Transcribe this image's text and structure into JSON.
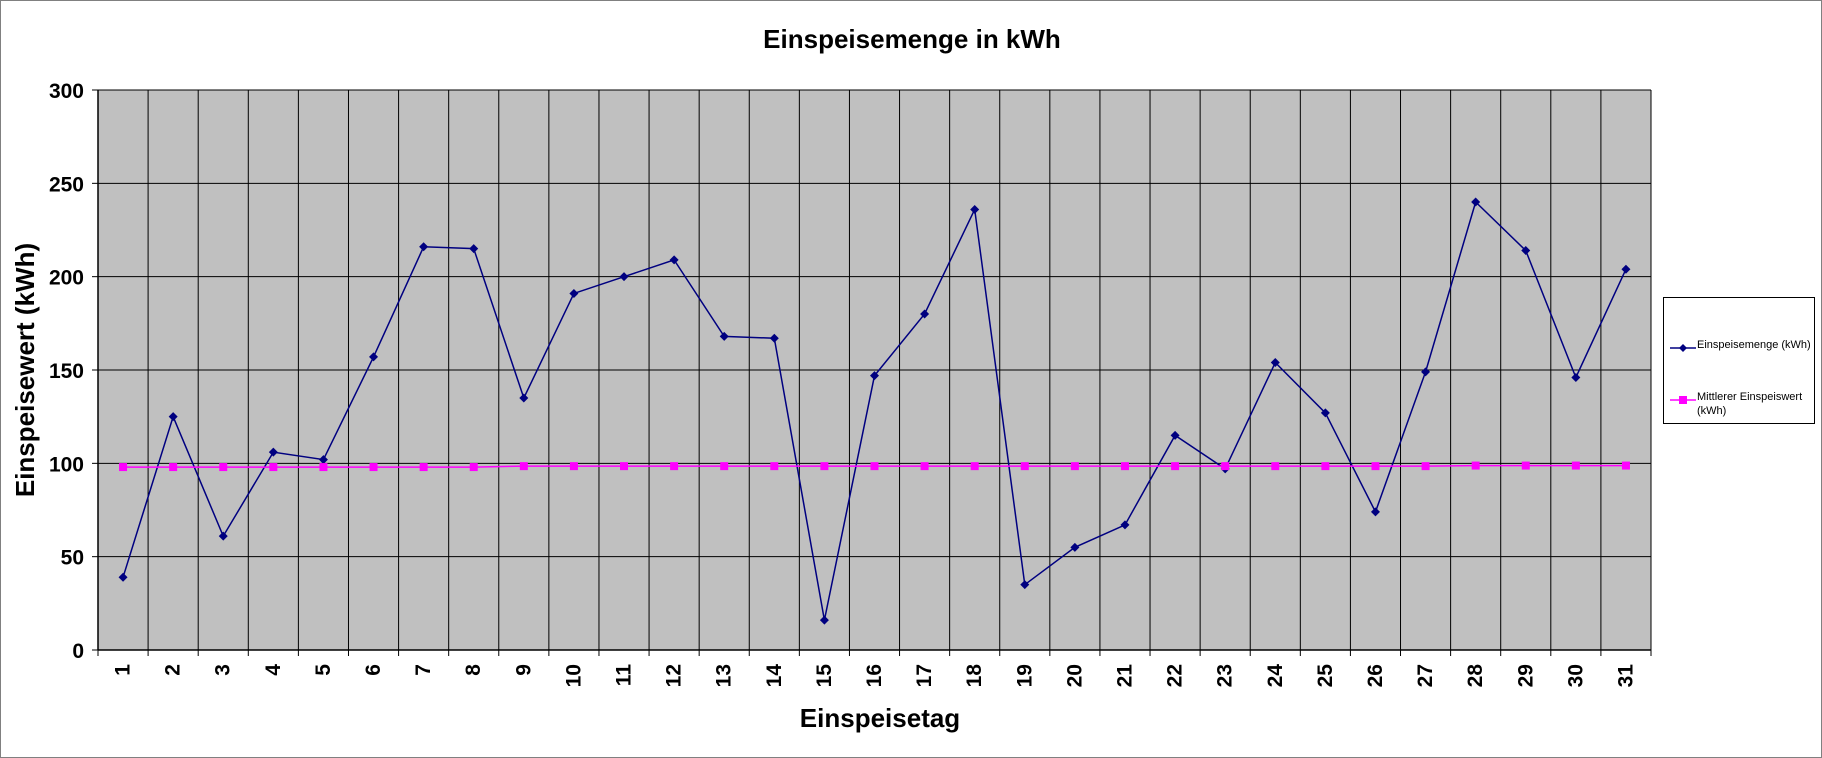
{
  "chart_data": {
    "type": "line",
    "title": "Einspeisemenge in kWh",
    "xlabel": "Einspeisetag",
    "ylabel": "Einspeisewert  (kWh)",
    "ylim": [
      0,
      300
    ],
    "yticks": [
      "0",
      "50",
      "100",
      "150",
      "200",
      "250",
      "300"
    ],
    "categories": [
      "1",
      "2",
      "3",
      "4",
      "5",
      "6",
      "7",
      "8",
      "9",
      "10",
      "11",
      "12",
      "13",
      "14",
      "15",
      "16",
      "17",
      "18",
      "19",
      "20",
      "21",
      "22",
      "23",
      "24",
      "25",
      "26",
      "27",
      "28",
      "29",
      "30",
      "31"
    ],
    "grid": true,
    "legend_position": "right",
    "plot_background": "#c0c0c0",
    "series": [
      {
        "name": "Einspeisemenge (kWh)",
        "color": "#000080",
        "marker": "diamond",
        "values": [
          39,
          125,
          61,
          106,
          102,
          157,
          216,
          215,
          135,
          191,
          200,
          209,
          168,
          167,
          16,
          147,
          180,
          236,
          35,
          55,
          67,
          115,
          97,
          154,
          127,
          74,
          149,
          240,
          214,
          146,
          204
        ]
      },
      {
        "name": "Mittlerer Einspeiswert (kWh)",
        "color": "#ff00ff",
        "marker": "square",
        "values": [
          98,
          98,
          98,
          98,
          98,
          98,
          98,
          98,
          98.5,
          98.5,
          98.5,
          98.5,
          98.5,
          98.5,
          98.5,
          98.5,
          98.5,
          98.5,
          98.5,
          98.5,
          98.5,
          98.5,
          98.5,
          98.5,
          98.5,
          98.5,
          98.5,
          98.8,
          98.8,
          98.8,
          98.8
        ]
      }
    ]
  }
}
